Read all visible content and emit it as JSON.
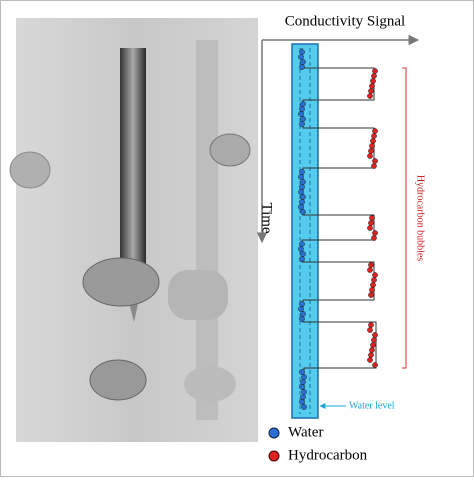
{
  "figure": {
    "axis_x_label": "Conductivity Signal",
    "axis_y_label": "Time",
    "bracket_label": "Hydrocarbon bubbles",
    "band_label": "Water level",
    "legend": [
      "Water",
      "Hydrocarbon"
    ]
  }
}
